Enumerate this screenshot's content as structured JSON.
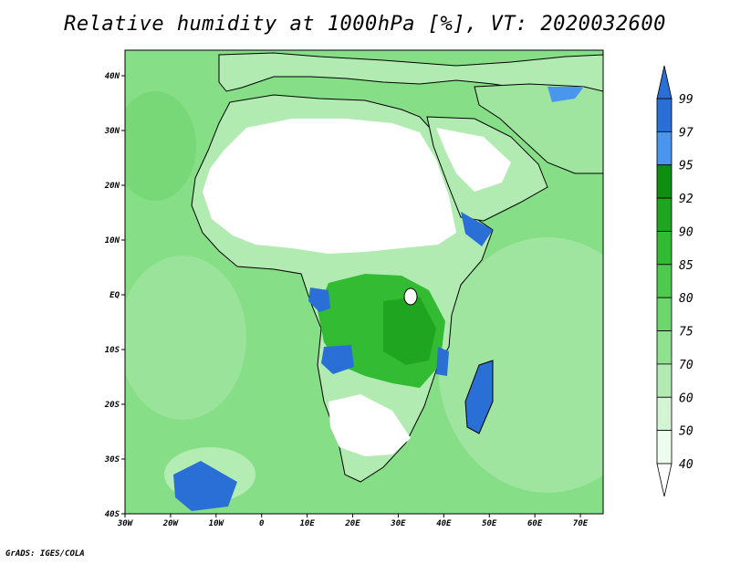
{
  "title": "Relative humidity at 1000hPa [%], VT: 2020032600",
  "credit": "GrADS: IGES/COLA",
  "map": {
    "lon_range": [
      -30,
      75
    ],
    "lat_range": [
      -40,
      45
    ],
    "lon_ticks": [
      "30W",
      "20W",
      "10W",
      "0",
      "10E",
      "20E",
      "30E",
      "40E",
      "50E",
      "60E",
      "70E"
    ],
    "lat_ticks": [
      "40N",
      "30N",
      "20N",
      "10N",
      "EQ",
      "10S",
      "20S",
      "30S",
      "40S"
    ],
    "ocean_color": "#86de86",
    "land_features": [
      "Africa",
      "Europe",
      "Arabian Peninsula",
      "Madagascar"
    ]
  },
  "colorbar": {
    "labels": [
      "99",
      "97",
      "95",
      "92",
      "90",
      "85",
      "80",
      "75",
      "70",
      "60",
      "50",
      "40"
    ],
    "colors": [
      "#2a6fd6",
      "#4a96ef",
      "#0f8f0f",
      "#1fa51f",
      "#33bb33",
      "#4fca4f",
      "#6dd66d",
      "#8fe08f",
      "#b2ebb2",
      "#d2f4d2",
      "#eefcee"
    ],
    "top_arrow_color": "#2a6fd6",
    "bottom_arrow_color": "#ffffff"
  }
}
